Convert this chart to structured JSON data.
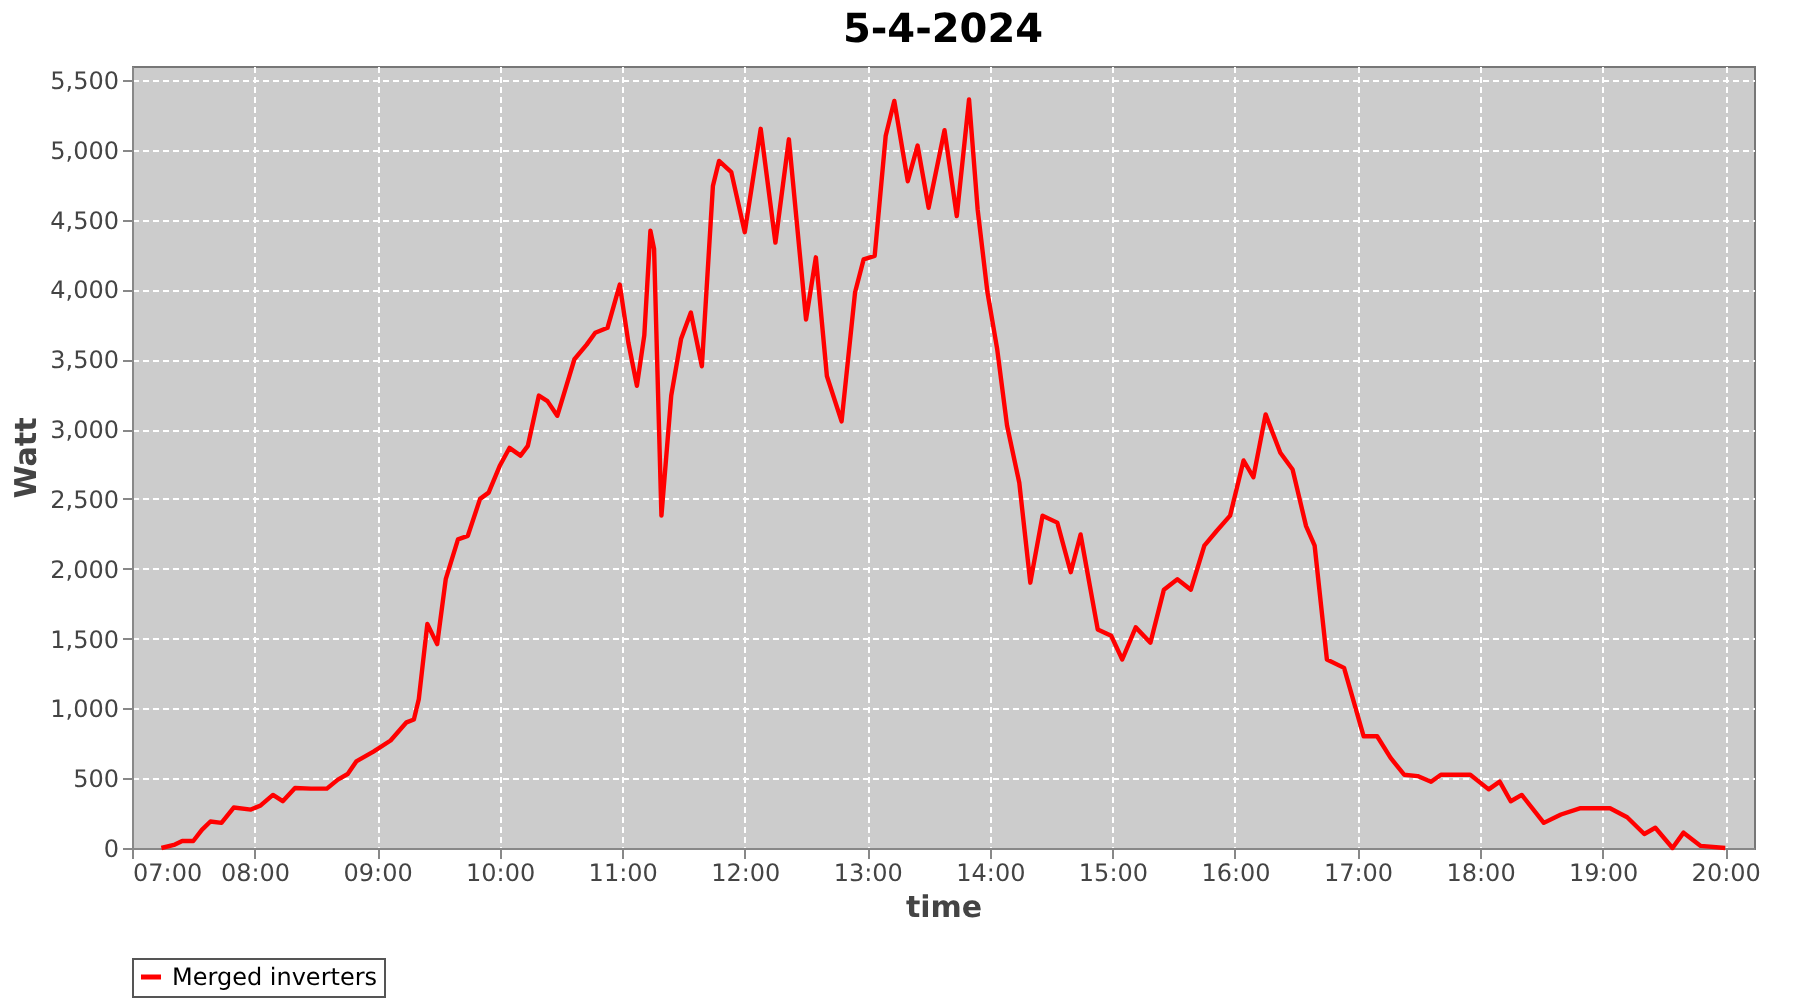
{
  "chart_data": {
    "type": "line",
    "title": "5-4-2024",
    "xlabel": "time",
    "ylabel": "Watt",
    "xlim": [
      7,
      20.235
    ],
    "ylim": [
      0,
      5600
    ],
    "xticks": [
      {
        "value": 7,
        "label": "07:00"
      },
      {
        "value": 8,
        "label": "08:00"
      },
      {
        "value": 9,
        "label": "09:00"
      },
      {
        "value": 10,
        "label": "10:00"
      },
      {
        "value": 11,
        "label": "11:00"
      },
      {
        "value": 12,
        "label": "12:00"
      },
      {
        "value": 13,
        "label": "13:00"
      },
      {
        "value": 14,
        "label": "14:00"
      },
      {
        "value": 15,
        "label": "15:00"
      },
      {
        "value": 16,
        "label": "16:00"
      },
      {
        "value": 17,
        "label": "17:00"
      },
      {
        "value": 18,
        "label": "18:00"
      },
      {
        "value": 19,
        "label": "19:00"
      },
      {
        "value": 20,
        "label": "20:00"
      }
    ],
    "yticks": [
      0,
      500,
      {
        "value": 1000,
        "label": "1,000"
      },
      {
        "value": 1500,
        "label": "1,500"
      },
      {
        "value": 2000,
        "label": "2,000"
      },
      {
        "value": 2500,
        "label": "2,500"
      },
      {
        "value": 3000,
        "label": "3,000"
      },
      {
        "value": 3500,
        "label": "3,500"
      },
      {
        "value": 4000,
        "label": "4,000"
      },
      {
        "value": 4500,
        "label": "4,500"
      },
      {
        "value": 5000,
        "label": "5,000"
      },
      {
        "value": 5500,
        "label": "5,500"
      }
    ],
    "grid": true,
    "legend": "bottom",
    "marker": "none",
    "line_style": "solid",
    "series": [
      {
        "name": "Merged inverters",
        "color": "#ff0000",
        "x": [
          7.24,
          7.35,
          7.41,
          7.5,
          7.57,
          7.64,
          7.73,
          7.83,
          7.97,
          8.05,
          8.15,
          8.23,
          8.33,
          8.46,
          8.59,
          8.68,
          8.76,
          8.83,
          8.97,
          9.11,
          9.24,
          9.3,
          9.34,
          9.41,
          9.49,
          9.56,
          9.66,
          9.74,
          9.84,
          9.91,
          10.0,
          10.08,
          10.17,
          10.23,
          10.32,
          10.39,
          10.47,
          10.61,
          10.71,
          10.78,
          10.88,
          10.98,
          11.05,
          11.12,
          11.18,
          11.23,
          11.26,
          11.32,
          11.4,
          11.48,
          11.56,
          11.65,
          11.74,
          11.79,
          11.89,
          12.0,
          12.13,
          12.25,
          12.36,
          12.5,
          12.58,
          12.67,
          12.79,
          12.9,
          12.97,
          13.06,
          13.15,
          13.22,
          13.33,
          13.41,
          13.5,
          13.63,
          13.73,
          13.83,
          13.9,
          13.98,
          14.06,
          14.14,
          14.24,
          14.33,
          14.43,
          14.55,
          14.66,
          14.74,
          14.88,
          14.99,
          15.08,
          15.19,
          15.31,
          15.42,
          15.53,
          15.64,
          15.75,
          15.85,
          15.96,
          16.07,
          16.15,
          16.25,
          16.37,
          16.47,
          16.58,
          16.65,
          16.75,
          16.89,
          17.05,
          17.16,
          17.27,
          17.38,
          17.49,
          17.6,
          17.68,
          17.92,
          18.07,
          18.16,
          18.25,
          18.34,
          18.52,
          18.66,
          18.82,
          19.06,
          19.2,
          19.34,
          19.43,
          19.57,
          19.66,
          19.8,
          20.0
        ],
        "values": [
          0,
          25,
          50,
          50,
          130,
          190,
          180,
          290,
          275,
          305,
          380,
          335,
          430,
          425,
          425,
          490,
          530,
          620,
          690,
          770,
          900,
          920,
          1065,
          1605,
          1460,
          1925,
          2210,
          2235,
          2500,
          2545,
          2735,
          2865,
          2810,
          2880,
          3240,
          3200,
          3095,
          3500,
          3605,
          3690,
          3725,
          4035,
          3620,
          3310,
          3670,
          4420,
          4290,
          2380,
          3240,
          3645,
          3835,
          3450,
          4740,
          4920,
          4840,
          4410,
          5150,
          4335,
          5075,
          3785,
          4230,
          3380,
          3055,
          3980,
          4215,
          4240,
          5100,
          5350,
          4775,
          5030,
          4585,
          5140,
          4525,
          5360,
          4575,
          3980,
          3570,
          3025,
          2615,
          1900,
          2380,
          2330,
          1975,
          2245,
          1565,
          1520,
          1350,
          1580,
          1470,
          1850,
          1925,
          1850,
          2165,
          2270,
          2380,
          2775,
          2655,
          3105,
          2830,
          2710,
          2305,
          2165,
          1350,
          1290,
          800,
          800,
          645,
          525,
          515,
          475,
          525,
          525,
          420,
          475,
          335,
          380,
          180,
          240,
          285,
          285,
          220,
          100,
          145,
          0,
          110,
          15,
          0
        ]
      }
    ]
  }
}
